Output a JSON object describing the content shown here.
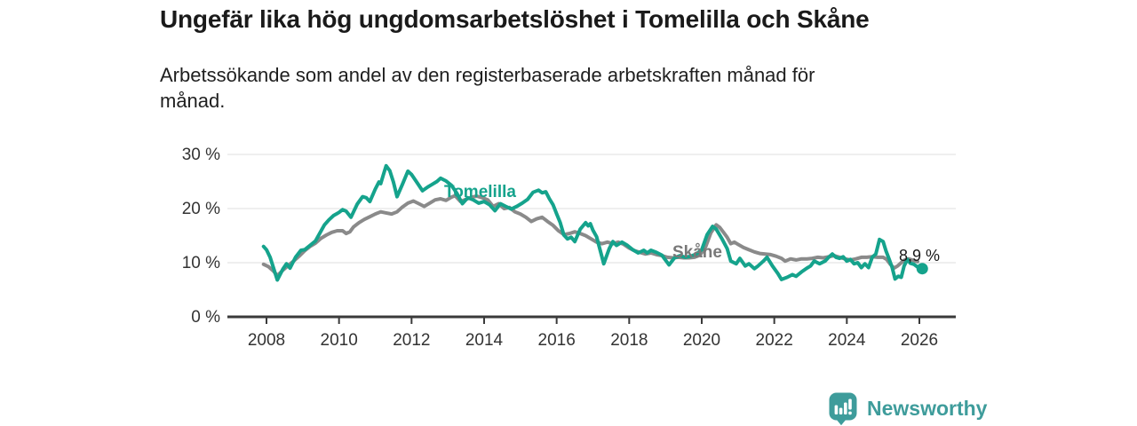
{
  "header": {
    "title": "Ungefär lika hög ungdomsarbetslöshet i Tomelilla och Skåne",
    "subtitle_line1": "Arbetssökande som andel av den registerbaserade arbetskraften månad för",
    "subtitle_line2": "månad."
  },
  "branding": {
    "logo_text": "Newsworthy",
    "logo_icon": "bar-chart-speech-bubble-icon",
    "logo_color": "#3e9c9b"
  },
  "chart_data": {
    "type": "line",
    "title": "Ungefär lika hög ungdomsarbetslöshet i Tomelilla och Skåne",
    "subtitle": "Arbetssökande som andel av den registerbaserade arbetskraften månad för månad.",
    "unit": "%",
    "grid": true,
    "legend": "inline-labels",
    "x_axis": {
      "ticks": [
        2008,
        2010,
        2012,
        2014,
        2016,
        2018,
        2020,
        2022,
        2024,
        2026
      ],
      "range": [
        2006.9,
        2027.0
      ]
    },
    "y_axis": {
      "ticks": [
        0,
        10,
        20,
        30
      ],
      "tick_labels": [
        "0 %",
        "10 %",
        "20 %",
        "30 %"
      ],
      "range": [
        0,
        32
      ]
    },
    "end_label": "8,9 %",
    "end_value": 8.9,
    "colors": {
      "tomelilla": "#15a38c",
      "skane": "#8a8a8a",
      "skane_label": "#787878",
      "axis": "#3a3a3a",
      "grid": "#dfdfdf"
    },
    "series": [
      {
        "name": "Skåne",
        "color": "#8a8a8a",
        "label_color": "#787878",
        "points": [
          [
            2007.92,
            9.7
          ],
          [
            2008.05,
            9.3
          ],
          [
            2008.2,
            8.4
          ],
          [
            2008.3,
            7.6
          ],
          [
            2008.45,
            8.6
          ],
          [
            2008.6,
            9.5
          ],
          [
            2008.75,
            10.3
          ],
          [
            2008.9,
            11.2
          ],
          [
            2009.05,
            12.2
          ],
          [
            2009.2,
            13.0
          ],
          [
            2009.35,
            13.6
          ],
          [
            2009.5,
            14.5
          ],
          [
            2009.65,
            15.1
          ],
          [
            2009.8,
            15.6
          ],
          [
            2009.95,
            15.9
          ],
          [
            2010.1,
            15.9
          ],
          [
            2010.2,
            15.4
          ],
          [
            2010.3,
            15.7
          ],
          [
            2010.4,
            16.6
          ],
          [
            2010.55,
            17.4
          ],
          [
            2010.7,
            18.0
          ],
          [
            2010.85,
            18.5
          ],
          [
            2011.0,
            19.0
          ],
          [
            2011.15,
            19.4
          ],
          [
            2011.3,
            19.2
          ],
          [
            2011.45,
            19.0
          ],
          [
            2011.6,
            19.4
          ],
          [
            2011.75,
            20.3
          ],
          [
            2011.9,
            21.0
          ],
          [
            2012.05,
            21.4
          ],
          [
            2012.2,
            20.9
          ],
          [
            2012.35,
            20.4
          ],
          [
            2012.5,
            21.0
          ],
          [
            2012.65,
            21.6
          ],
          [
            2012.8,
            21.8
          ],
          [
            2012.95,
            21.5
          ],
          [
            2013.1,
            22.1
          ],
          [
            2013.2,
            22.4
          ],
          [
            2013.35,
            21.3
          ],
          [
            2013.5,
            21.7
          ],
          [
            2013.65,
            22.1
          ],
          [
            2013.8,
            22.3
          ],
          [
            2013.95,
            22.0
          ],
          [
            2014.1,
            21.6
          ],
          [
            2014.25,
            20.4
          ],
          [
            2014.4,
            20.9
          ],
          [
            2014.55,
            20.0
          ],
          [
            2014.7,
            20.2
          ],
          [
            2014.85,
            19.4
          ],
          [
            2015.0,
            19.0
          ],
          [
            2015.15,
            18.4
          ],
          [
            2015.3,
            17.6
          ],
          [
            2015.45,
            18.1
          ],
          [
            2015.6,
            18.4
          ],
          [
            2015.75,
            17.6
          ],
          [
            2015.9,
            16.9
          ],
          [
            2016.05,
            15.9
          ],
          [
            2016.2,
            15.2
          ],
          [
            2016.35,
            15.4
          ],
          [
            2016.5,
            15.7
          ],
          [
            2016.65,
            15.4
          ],
          [
            2016.8,
            15.0
          ],
          [
            2016.95,
            14.4
          ],
          [
            2017.1,
            13.8
          ],
          [
            2017.25,
            13.5
          ],
          [
            2017.4,
            13.8
          ],
          [
            2017.55,
            13.5
          ],
          [
            2017.7,
            13.8
          ],
          [
            2017.85,
            13.4
          ],
          [
            2018.0,
            12.7
          ],
          [
            2018.15,
            12.2
          ],
          [
            2018.3,
            11.9
          ],
          [
            2018.45,
            11.6
          ],
          [
            2018.6,
            11.8
          ],
          [
            2018.75,
            11.5
          ],
          [
            2018.9,
            11.3
          ],
          [
            2019.05,
            11.0
          ],
          [
            2019.2,
            10.9
          ],
          [
            2019.35,
            11.0
          ],
          [
            2019.5,
            10.9
          ],
          [
            2019.65,
            10.9
          ],
          [
            2019.8,
            11.0
          ],
          [
            2019.95,
            11.4
          ],
          [
            2020.1,
            12.8
          ],
          [
            2020.25,
            15.5
          ],
          [
            2020.4,
            17.0
          ],
          [
            2020.5,
            16.5
          ],
          [
            2020.6,
            15.6
          ],
          [
            2020.7,
            14.7
          ],
          [
            2020.8,
            13.5
          ],
          [
            2020.9,
            13.8
          ],
          [
            2021.0,
            13.4
          ],
          [
            2021.15,
            12.8
          ],
          [
            2021.3,
            12.4
          ],
          [
            2021.45,
            12.0
          ],
          [
            2021.6,
            11.7
          ],
          [
            2021.75,
            11.6
          ],
          [
            2021.9,
            11.5
          ],
          [
            2022.05,
            11.2
          ],
          [
            2022.2,
            10.8
          ],
          [
            2022.3,
            10.3
          ],
          [
            2022.45,
            10.7
          ],
          [
            2022.6,
            10.5
          ],
          [
            2022.75,
            10.7
          ],
          [
            2022.9,
            10.7
          ],
          [
            2023.05,
            10.8
          ],
          [
            2023.2,
            11.0
          ],
          [
            2023.35,
            10.9
          ],
          [
            2023.5,
            11.1
          ],
          [
            2023.65,
            11.3
          ],
          [
            2023.8,
            11.0
          ],
          [
            2023.95,
            10.7
          ],
          [
            2024.1,
            10.5
          ],
          [
            2024.25,
            10.7
          ],
          [
            2024.4,
            11.0
          ],
          [
            2024.55,
            11.0
          ],
          [
            2024.7,
            11.1
          ],
          [
            2024.85,
            11.0
          ],
          [
            2025.0,
            11.0
          ],
          [
            2025.1,
            10.6
          ],
          [
            2025.2,
            9.7
          ],
          [
            2025.3,
            9.0
          ],
          [
            2025.4,
            9.4
          ],
          [
            2025.5,
            10.0
          ],
          [
            2025.6,
            10.5
          ],
          [
            2025.7,
            10.7
          ],
          [
            2025.8,
            10.5
          ],
          [
            2025.95,
            10.2
          ]
        ]
      },
      {
        "name": "Tomelilla",
        "color": "#15a38c",
        "label_color": "#15a38c",
        "points": [
          [
            2007.92,
            13.0
          ],
          [
            2008.0,
            12.4
          ],
          [
            2008.1,
            11.0
          ],
          [
            2008.3,
            6.8
          ],
          [
            2008.45,
            8.8
          ],
          [
            2008.55,
            9.8
          ],
          [
            2008.65,
            9.0
          ],
          [
            2008.8,
            11.0
          ],
          [
            2008.95,
            12.3
          ],
          [
            2009.05,
            12.4
          ],
          [
            2009.2,
            13.2
          ],
          [
            2009.35,
            14.0
          ],
          [
            2009.5,
            15.8
          ],
          [
            2009.6,
            17.0
          ],
          [
            2009.72,
            17.9
          ],
          [
            2009.85,
            18.7
          ],
          [
            2010.0,
            19.3
          ],
          [
            2010.1,
            19.8
          ],
          [
            2010.2,
            19.5
          ],
          [
            2010.33,
            18.4
          ],
          [
            2010.5,
            20.8
          ],
          [
            2010.65,
            22.2
          ],
          [
            2010.75,
            22.0
          ],
          [
            2010.85,
            21.3
          ],
          [
            2011.0,
            23.6
          ],
          [
            2011.1,
            24.9
          ],
          [
            2011.15,
            24.6
          ],
          [
            2011.22,
            26.2
          ],
          [
            2011.3,
            27.9
          ],
          [
            2011.4,
            27.0
          ],
          [
            2011.5,
            24.9
          ],
          [
            2011.6,
            22.2
          ],
          [
            2011.75,
            24.5
          ],
          [
            2011.9,
            26.9
          ],
          [
            2012.0,
            26.3
          ],
          [
            2012.15,
            24.8
          ],
          [
            2012.3,
            23.3
          ],
          [
            2012.45,
            24.0
          ],
          [
            2012.55,
            24.4
          ],
          [
            2012.7,
            25.0
          ],
          [
            2012.8,
            25.6
          ],
          [
            2012.95,
            25.1
          ],
          [
            2013.1,
            24.3
          ],
          [
            2013.25,
            22.8
          ],
          [
            2013.4,
            20.9
          ],
          [
            2013.55,
            22.0
          ],
          [
            2013.7,
            21.6
          ],
          [
            2013.85,
            21.0
          ],
          [
            2014.0,
            21.3
          ],
          [
            2014.15,
            20.7
          ],
          [
            2014.3,
            19.6
          ],
          [
            2014.45,
            20.9
          ],
          [
            2014.6,
            20.4
          ],
          [
            2014.75,
            19.9
          ],
          [
            2014.9,
            20.4
          ],
          [
            2015.05,
            21.0
          ],
          [
            2015.2,
            21.7
          ],
          [
            2015.35,
            23.0
          ],
          [
            2015.5,
            23.4
          ],
          [
            2015.6,
            22.9
          ],
          [
            2015.7,
            23.1
          ],
          [
            2015.8,
            21.8
          ],
          [
            2015.9,
            20.7
          ],
          [
            2016.0,
            19.0
          ],
          [
            2016.1,
            17.4
          ],
          [
            2016.2,
            15.1
          ],
          [
            2016.3,
            14.4
          ],
          [
            2016.4,
            14.7
          ],
          [
            2016.5,
            13.9
          ],
          [
            2016.65,
            16.2
          ],
          [
            2016.8,
            17.4
          ],
          [
            2016.87,
            16.8
          ],
          [
            2016.93,
            17.2
          ],
          [
            2017.0,
            16.0
          ],
          [
            2017.1,
            14.8
          ],
          [
            2017.3,
            9.8
          ],
          [
            2017.45,
            12.6
          ],
          [
            2017.55,
            13.9
          ],
          [
            2017.65,
            13.2
          ],
          [
            2017.8,
            13.8
          ],
          [
            2017.95,
            13.2
          ],
          [
            2018.1,
            12.4
          ],
          [
            2018.25,
            11.8
          ],
          [
            2018.4,
            12.3
          ],
          [
            2018.5,
            11.8
          ],
          [
            2018.6,
            12.3
          ],
          [
            2018.75,
            11.9
          ],
          [
            2018.9,
            11.4
          ],
          [
            2019.1,
            9.6
          ],
          [
            2019.25,
            10.9
          ],
          [
            2019.4,
            11.3
          ],
          [
            2019.55,
            11.0
          ],
          [
            2019.7,
            11.2
          ],
          [
            2019.85,
            11.6
          ],
          [
            2020.0,
            12.4
          ],
          [
            2020.15,
            15.2
          ],
          [
            2020.3,
            16.7
          ],
          [
            2020.4,
            16.2
          ],
          [
            2020.55,
            14.5
          ],
          [
            2020.7,
            12.6
          ],
          [
            2020.8,
            10.3
          ],
          [
            2020.95,
            9.8
          ],
          [
            2021.05,
            10.8
          ],
          [
            2021.2,
            9.4
          ],
          [
            2021.3,
            9.8
          ],
          [
            2021.45,
            8.9
          ],
          [
            2021.55,
            9.4
          ],
          [
            2021.7,
            10.3
          ],
          [
            2021.8,
            11.0
          ],
          [
            2021.95,
            9.4
          ],
          [
            2022.1,
            8.0
          ],
          [
            2022.2,
            6.9
          ],
          [
            2022.35,
            7.3
          ],
          [
            2022.5,
            7.8
          ],
          [
            2022.6,
            7.5
          ],
          [
            2022.75,
            8.3
          ],
          [
            2022.9,
            9.0
          ],
          [
            2023.0,
            9.4
          ],
          [
            2023.1,
            10.3
          ],
          [
            2023.25,
            9.8
          ],
          [
            2023.4,
            10.3
          ],
          [
            2023.5,
            11.0
          ],
          [
            2023.6,
            11.6
          ],
          [
            2023.7,
            11.0
          ],
          [
            2023.8,
            10.8
          ],
          [
            2023.9,
            11.1
          ],
          [
            2024.0,
            10.3
          ],
          [
            2024.1,
            10.6
          ],
          [
            2024.2,
            9.8
          ],
          [
            2024.3,
            10.0
          ],
          [
            2024.4,
            9.1
          ],
          [
            2024.5,
            9.8
          ],
          [
            2024.6,
            9.1
          ],
          [
            2024.7,
            11.0
          ],
          [
            2024.8,
            11.6
          ],
          [
            2024.9,
            14.3
          ],
          [
            2025.0,
            13.9
          ],
          [
            2025.08,
            12.2
          ],
          [
            2025.17,
            10.6
          ],
          [
            2025.25,
            9.1
          ],
          [
            2025.33,
            7.0
          ],
          [
            2025.42,
            7.5
          ],
          [
            2025.5,
            7.3
          ],
          [
            2025.58,
            9.4
          ],
          [
            2025.67,
            10.6
          ],
          [
            2025.75,
            9.9
          ],
          [
            2025.85,
            9.7
          ],
          [
            2025.95,
            9.2
          ],
          [
            2026.08,
            8.9
          ]
        ]
      }
    ]
  }
}
